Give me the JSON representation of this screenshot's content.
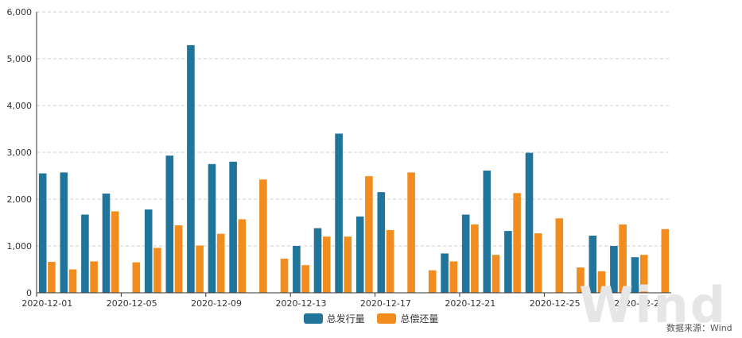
{
  "chart_data": {
    "type": "bar",
    "categories": [
      "2020-12-01",
      "2020-12-02",
      "2020-12-03",
      "2020-12-04",
      "2020-12-05",
      "2020-12-06",
      "2020-12-07",
      "2020-12-08",
      "2020-12-09",
      "2020-12-10",
      "2020-12-11",
      "2020-12-12",
      "2020-12-13",
      "2020-12-14",
      "2020-12-15",
      "2020-12-16",
      "2020-12-17",
      "2020-12-18",
      "2020-12-19",
      "2020-12-20",
      "2020-12-21",
      "2020-12-22",
      "2020-12-23",
      "2020-12-24",
      "2020-12-25",
      "2020-12-26",
      "2020-12-27",
      "2020-12-28",
      "2020-12-29",
      "2020-12-30"
    ],
    "x_tick_labels": [
      "2020-12-01",
      "2020-12-05",
      "2020-12-09",
      "2020-12-13",
      "2020-12-17",
      "2020-12-21",
      "2020-12-25",
      "2020-12-29"
    ],
    "series": [
      {
        "name": "总发行量",
        "color": "#21759b",
        "values": [
          2550,
          2570,
          1670,
          2120,
          0,
          1780,
          2930,
          5290,
          2750,
          2800,
          0,
          0,
          1000,
          1380,
          3400,
          1630,
          2150,
          0,
          0,
          840,
          1670,
          2610,
          1320,
          2990,
          0,
          0,
          1220,
          1000,
          760,
          0
        ]
      },
      {
        "name": "总偿还量",
        "color": "#f28c1f",
        "values": [
          660,
          500,
          670,
          1740,
          650,
          960,
          1440,
          1010,
          1260,
          1570,
          2420,
          730,
          590,
          1200,
          1200,
          2490,
          1340,
          2570,
          480,
          670,
          1460,
          810,
          2130,
          1270,
          1590,
          540,
          460,
          1460,
          810,
          1360
        ]
      }
    ],
    "ylim": [
      0,
      6000
    ],
    "y_ticks": [
      0,
      1000,
      2000,
      3000,
      4000,
      5000,
      6000
    ],
    "y_tick_labels": [
      "0",
      "1,000",
      "2,000",
      "3,000",
      "4,000",
      "5,000",
      "6,000"
    ],
    "grid": "horizontal-dashed",
    "legend_position": "bottom-center",
    "title": "",
    "xlabel": "",
    "ylabel": ""
  },
  "source_note": "数据来源：Wind",
  "watermark": "Wind"
}
